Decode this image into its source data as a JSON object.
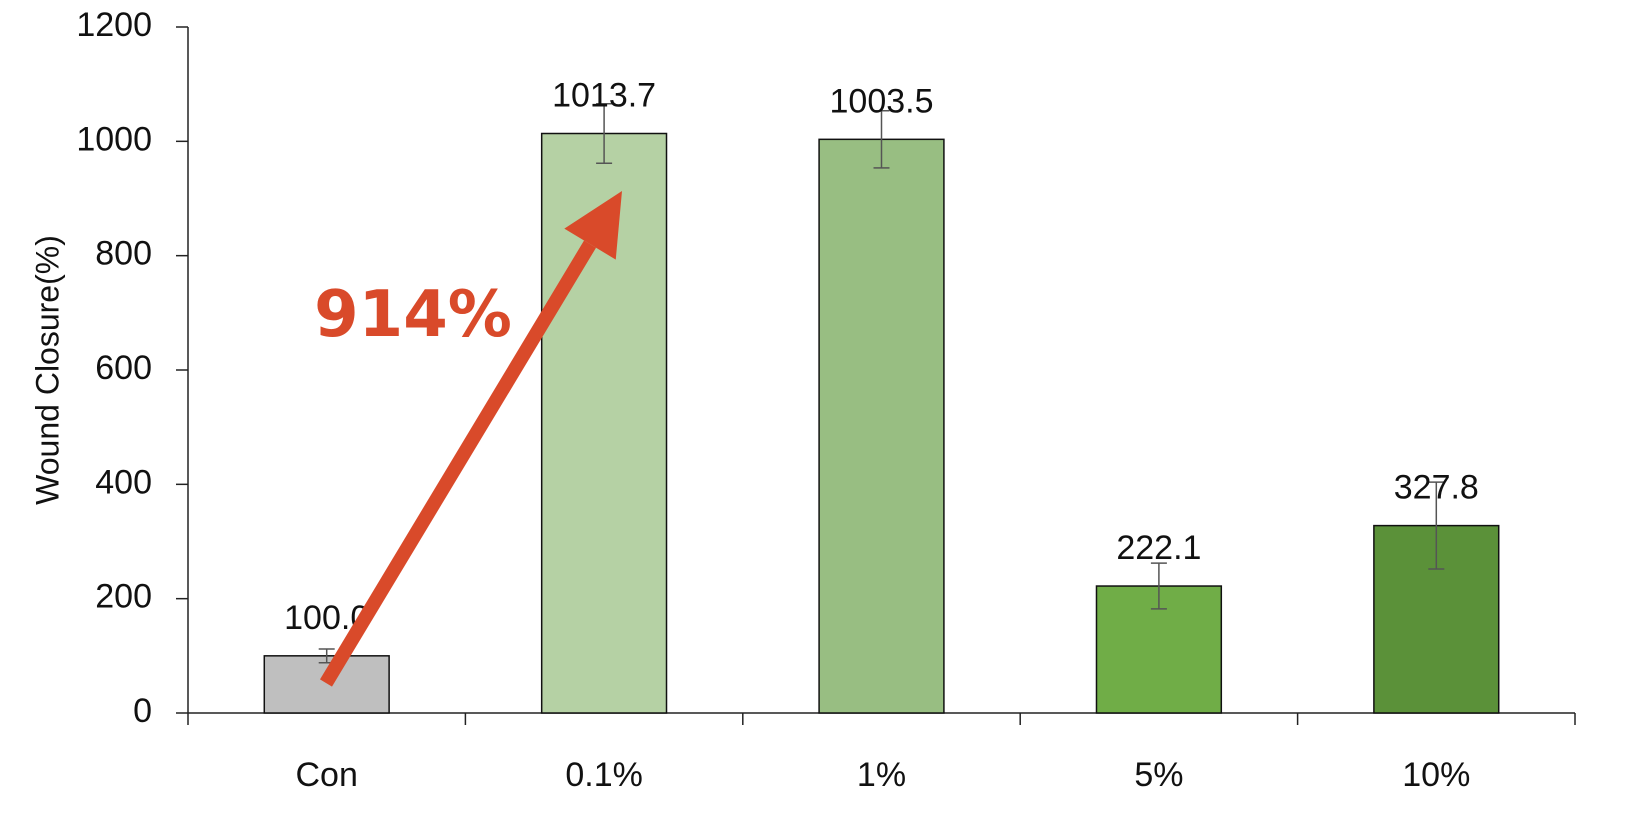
{
  "chart_data": {
    "type": "bar",
    "categories": [
      "Con",
      "0.1%",
      "1%",
      "5%",
      "10%"
    ],
    "values": [
      100.0,
      1013.7,
      1003.5,
      222.1,
      327.8
    ],
    "value_labels": [
      "100.0",
      "1013.7",
      "1003.5",
      "222.1",
      "327.8"
    ],
    "error_bars": [
      12,
      52,
      50,
      40,
      76
    ],
    "bar_colors": [
      "#bfbfbf",
      "#b5d1a4",
      "#98be82",
      "#70ad47",
      "#5b9139"
    ],
    "title": "",
    "xlabel": "",
    "ylabel": "Wound Closure(%)",
    "ylim": [
      0,
      1200
    ],
    "yticks": [
      "0",
      "200",
      "400",
      "600",
      "800",
      "1000",
      "1200"
    ],
    "grid": false,
    "annotation": {
      "text": "914%",
      "color": "#d94a2a",
      "arrow_from_category": "Con",
      "arrow_to_category": "0.1%"
    }
  }
}
